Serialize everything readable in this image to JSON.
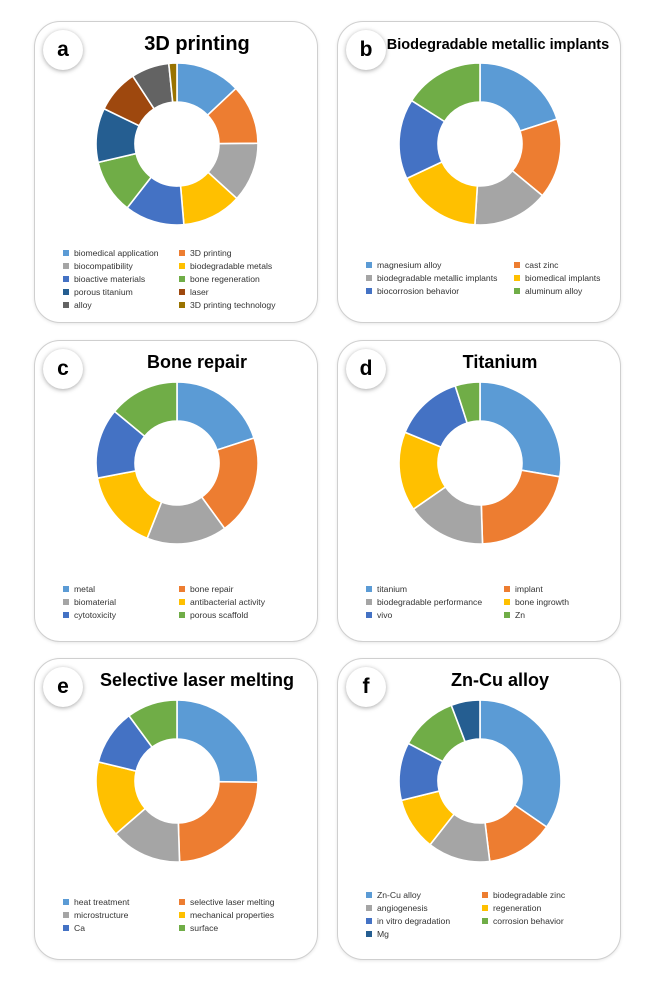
{
  "colors": {
    "blue": "#5B9BD5",
    "orange": "#ED7D31",
    "gray": "#A5A5A5",
    "gold": "#FFC000",
    "darkblue": "#4472C4",
    "green": "#70AD47",
    "navy": "#255E91",
    "brown": "#9E480E",
    "darkgray": "#636363",
    "olive": "#997300"
  },
  "chart_data": [
    {
      "type": "pie",
      "letter": "a",
      "title": "3D printing",
      "categories": [
        "biomedical application",
        "3D printing",
        "biocompatibility",
        "biodegradable metals",
        "bioactive materials",
        "bone regeneration",
        "porous titanium",
        "laser",
        "alloy",
        "3D printing technology"
      ],
      "values": [
        12,
        11,
        11,
        11,
        11,
        10,
        10,
        8,
        7,
        1.5
      ],
      "colors": [
        "blue",
        "orange",
        "gray",
        "gold",
        "darkblue",
        "green",
        "navy",
        "brown",
        "darkgray",
        "olive"
      ]
    },
    {
      "type": "pie",
      "letter": "b",
      "title": "Biodegradable metallic implants",
      "categories": [
        "magnesium alloy",
        "cast zinc",
        "biodegradable metallic implants",
        "biomedical implants",
        "biocorrosion behavior",
        "aluminum alloy"
      ],
      "values": [
        20,
        16,
        15,
        17,
        16,
        16
      ],
      "colors": [
        "blue",
        "orange",
        "gray",
        "gold",
        "darkblue",
        "green"
      ]
    },
    {
      "type": "pie",
      "letter": "c",
      "title": "Bone repair",
      "categories": [
        "metal",
        "bone repair",
        "biomaterial",
        "antibacterial activity",
        "cytotoxicity",
        "porous scaffold"
      ],
      "values": [
        20,
        20,
        16,
        16,
        14,
        14
      ],
      "colors": [
        "blue",
        "orange",
        "gray",
        "gold",
        "darkblue",
        "green"
      ]
    },
    {
      "type": "pie",
      "letter": "d",
      "title": "Titanium",
      "categories": [
        "titanium",
        "implant",
        "biodegradable performance",
        "bone ingrowth",
        "vivo",
        "Zn"
      ],
      "values": [
        28,
        22,
        16,
        16,
        14,
        5
      ],
      "colors": [
        "blue",
        "orange",
        "gray",
        "gold",
        "darkblue",
        "green"
      ]
    },
    {
      "type": "pie",
      "letter": "e",
      "title": "Selective laser melting",
      "categories": [
        "heat treatment",
        "selective laser melting",
        "microstructure",
        "mechanical properties",
        "Ca",
        "surface"
      ],
      "values": [
        25,
        24,
        14,
        15,
        11,
        10
      ],
      "colors": [
        "blue",
        "orange",
        "gray",
        "gold",
        "darkblue",
        "green"
      ]
    },
    {
      "type": "pie",
      "letter": "f",
      "title": "Zn-Cu alloy",
      "categories": [
        "Zn-Cu alloy",
        "biodegradable zinc",
        "angiogenesis",
        "regeneration",
        "in vitro degradation",
        "corrosion behavior",
        "Mg"
      ],
      "values": [
        36,
        14,
        13,
        11,
        12,
        12,
        6
      ],
      "colors": [
        "blue",
        "orange",
        "gray",
        "gold",
        "darkblue",
        "green",
        "navy"
      ]
    }
  ]
}
